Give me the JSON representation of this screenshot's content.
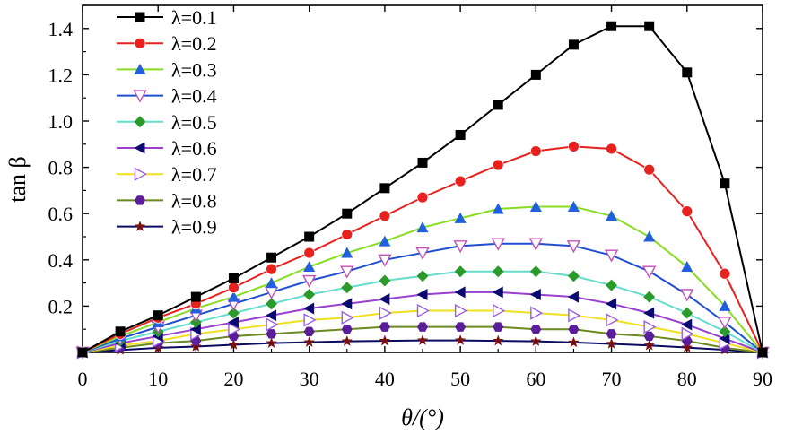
{
  "chart_data": {
    "type": "line",
    "xlabel": "θ/(°)",
    "ylabel": "tan β",
    "xlim": [
      0,
      90
    ],
    "ylim": [
      0,
      1.5
    ],
    "x_ticks": [
      0,
      10,
      20,
      30,
      40,
      50,
      60,
      70,
      80,
      90
    ],
    "x_tick_labels": [
      "0",
      "10",
      "20",
      "30",
      "40",
      "50",
      "60",
      "70",
      "80",
      "90"
    ],
    "y_ticks": [
      0.2,
      0.4,
      0.6,
      0.8,
      1.0,
      1.2,
      1.4
    ],
    "y_tick_labels": [
      "0.2",
      "0.4",
      "0.6",
      "0.8",
      "1.0",
      "1.2",
      "1.4"
    ],
    "grid": false,
    "legend_position": "top-left",
    "x": [
      0,
      5,
      10,
      15,
      20,
      25,
      30,
      35,
      40,
      45,
      50,
      55,
      60,
      65,
      70,
      75,
      80,
      85,
      90
    ],
    "series": [
      {
        "name": "λ=0.1",
        "color": "#000000",
        "marker": "square",
        "values": [
          0,
          0.09,
          0.16,
          0.24,
          0.32,
          0.41,
          0.5,
          0.6,
          0.71,
          0.82,
          0.94,
          1.07,
          1.2,
          1.33,
          1.41,
          1.41,
          1.21,
          0.73,
          0
        ]
      },
      {
        "name": "λ=0.2",
        "color": "#e8201e",
        "marker": "circle",
        "values": [
          0,
          0.08,
          0.15,
          0.21,
          0.28,
          0.36,
          0.43,
          0.51,
          0.59,
          0.67,
          0.74,
          0.81,
          0.87,
          0.89,
          0.88,
          0.79,
          0.61,
          0.34,
          0
        ]
      },
      {
        "name": "λ=0.3",
        "color": "#88dd22",
        "marker": "triangle-up",
        "marker_color": "#1f5fe0",
        "values": [
          0,
          0.07,
          0.13,
          0.19,
          0.24,
          0.3,
          0.37,
          0.43,
          0.48,
          0.54,
          0.58,
          0.62,
          0.63,
          0.63,
          0.59,
          0.5,
          0.37,
          0.2,
          0
        ]
      },
      {
        "name": "λ=0.4",
        "color": "#1f4fd0",
        "marker": "triangle-down-open",
        "marker_color": "#c050b8",
        "values": [
          0,
          0.06,
          0.11,
          0.16,
          0.21,
          0.26,
          0.31,
          0.35,
          0.4,
          0.43,
          0.46,
          0.47,
          0.47,
          0.46,
          0.42,
          0.35,
          0.25,
          0.13,
          0
        ]
      },
      {
        "name": "λ=0.5",
        "color": "#66ddcc",
        "marker": "diamond",
        "marker_color": "#2a9a2a",
        "values": [
          0,
          0.05,
          0.09,
          0.13,
          0.17,
          0.21,
          0.25,
          0.28,
          0.31,
          0.33,
          0.35,
          0.35,
          0.35,
          0.33,
          0.29,
          0.24,
          0.17,
          0.09,
          0
        ]
      },
      {
        "name": "λ=0.6",
        "color": "#9a40d0",
        "marker": "triangle-left",
        "marker_color": "#0a0a70",
        "values": [
          0,
          0.04,
          0.07,
          0.1,
          0.13,
          0.16,
          0.19,
          0.21,
          0.23,
          0.25,
          0.26,
          0.26,
          0.25,
          0.24,
          0.21,
          0.17,
          0.12,
          0.06,
          0
        ]
      },
      {
        "name": "λ=0.7",
        "color": "#f0e020",
        "marker": "triangle-right-open",
        "marker_color": "#9a60e0",
        "values": [
          0,
          0.03,
          0.05,
          0.08,
          0.1,
          0.12,
          0.14,
          0.15,
          0.17,
          0.18,
          0.18,
          0.18,
          0.17,
          0.16,
          0.14,
          0.11,
          0.08,
          0.04,
          0
        ]
      },
      {
        "name": "λ=0.8",
        "color": "#6a8a20",
        "marker": "hexagon",
        "marker_color": "#5a1e9a",
        "values": [
          0,
          0.02,
          0.04,
          0.05,
          0.07,
          0.08,
          0.09,
          0.1,
          0.11,
          0.11,
          0.11,
          0.11,
          0.1,
          0.1,
          0.08,
          0.07,
          0.05,
          0.02,
          0
        ]
      },
      {
        "name": "λ=0.9",
        "color": "#0a0a60",
        "marker": "star",
        "marker_color": "#7a1010",
        "values": [
          0,
          0.01,
          0.02,
          0.025,
          0.033,
          0.04,
          0.044,
          0.048,
          0.05,
          0.052,
          0.052,
          0.05,
          0.048,
          0.043,
          0.037,
          0.03,
          0.021,
          0.011,
          0
        ]
      }
    ]
  }
}
